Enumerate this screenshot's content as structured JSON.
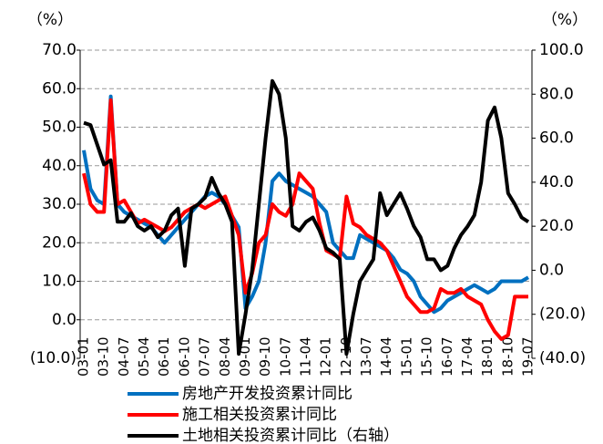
{
  "chart_data": {
    "type": "line",
    "y_label": "（%）",
    "y2_label": "（%）",
    "categories": [
      "03-01",
      null,
      null,
      "03-10",
      null,
      null,
      "04-07",
      null,
      null,
      "05-04",
      null,
      null,
      "06-01",
      null,
      null,
      "06-10",
      null,
      null,
      "07-07",
      null,
      null,
      "08-04",
      null,
      null,
      "09-01",
      null,
      null,
      "09-10",
      null,
      null,
      "10-07",
      null,
      null,
      "11-04",
      null,
      null,
      "12-01",
      null,
      null,
      "12-10",
      null,
      null,
      "13-07",
      null,
      null,
      "14-04",
      null,
      null,
      "15-01",
      null,
      null,
      "15-10",
      null,
      null,
      "16-07",
      null,
      null,
      "17-04",
      null,
      null,
      "18-01",
      null,
      null,
      "18-10",
      null,
      null,
      "19-07"
    ],
    "ylim": [
      -10,
      70
    ],
    "yticks": [
      {
        "value": -10,
        "label": "(10.0)"
      },
      {
        "value": 0,
        "label": "0.0"
      },
      {
        "value": 10,
        "label": "10.0"
      },
      {
        "value": 20,
        "label": "20.0"
      },
      {
        "value": 30,
        "label": "30.0"
      },
      {
        "value": 40,
        "label": "40.0"
      },
      {
        "value": 50,
        "label": "50.0"
      },
      {
        "value": 60,
        "label": "60.0"
      },
      {
        "value": 70,
        "label": "70.0"
      }
    ],
    "y2lim": [
      -40,
      100
    ],
    "y2ticks": [
      {
        "value": -40,
        "label": "(40.0)"
      },
      {
        "value": -20,
        "label": "(20.0)"
      },
      {
        "value": 0,
        "label": "0.0"
      },
      {
        "value": 20,
        "label": "20.0"
      },
      {
        "value": 40,
        "label": "40.0"
      },
      {
        "value": 60,
        "label": "60.0"
      },
      {
        "value": 80,
        "label": "80.0"
      },
      {
        "value": 100,
        "label": "100.0"
      }
    ],
    "grid": true,
    "series": [
      {
        "name": "房地产开发投资累计同比",
        "color": "#0070c0",
        "values": [
          44,
          34,
          31,
          30,
          58,
          30,
          28,
          27,
          26,
          25,
          24,
          22,
          20,
          22,
          24,
          26,
          28,
          30,
          32,
          33,
          32,
          30,
          27,
          24,
          3,
          6,
          10,
          20,
          36,
          38,
          36,
          35,
          34,
          33,
          32,
          30,
          28,
          20,
          18,
          16,
          16,
          22,
          21,
          20,
          19,
          18,
          16,
          13,
          12,
          10,
          6,
          4,
          2,
          3,
          5,
          6,
          7,
          8,
          9,
          8,
          7,
          8,
          10,
          10,
          10,
          10,
          11
        ]
      },
      {
        "name": "施工相关投资累计同比",
        "color": "#ff0000",
        "values": [
          38,
          30,
          28,
          28,
          57,
          30,
          31,
          28,
          25,
          26,
          25,
          24,
          23,
          24,
          26,
          28,
          29,
          30,
          29,
          30,
          31,
          32,
          27,
          22,
          7,
          12,
          20,
          22,
          30,
          28,
          27,
          30,
          38,
          36,
          34,
          25,
          18,
          17,
          16,
          32,
          25,
          24,
          22,
          21,
          20,
          18,
          14,
          10,
          6,
          4,
          2,
          2,
          3,
          8,
          7,
          7,
          8,
          6,
          5,
          4,
          0,
          -3,
          -5,
          -4,
          6,
          6,
          6
        ]
      },
      {
        "name": "土地相关投资累计同比（右轴）",
        "color": "#000000",
        "axis": "y2",
        "values": [
          67,
          66,
          57,
          48,
          50,
          22,
          22,
          26,
          20,
          18,
          20,
          15,
          18,
          25,
          28,
          2,
          28,
          30,
          33,
          42,
          35,
          30,
          22,
          -38,
          -20,
          0,
          30,
          60,
          86,
          80,
          60,
          20,
          18,
          22,
          24,
          18,
          10,
          8,
          5,
          -38,
          -20,
          -5,
          0,
          5,
          35,
          25,
          30,
          35,
          28,
          20,
          15,
          5,
          5,
          0,
          2,
          10,
          16,
          20,
          25,
          40,
          68,
          74,
          60,
          35,
          30,
          24,
          22
        ]
      }
    ]
  }
}
